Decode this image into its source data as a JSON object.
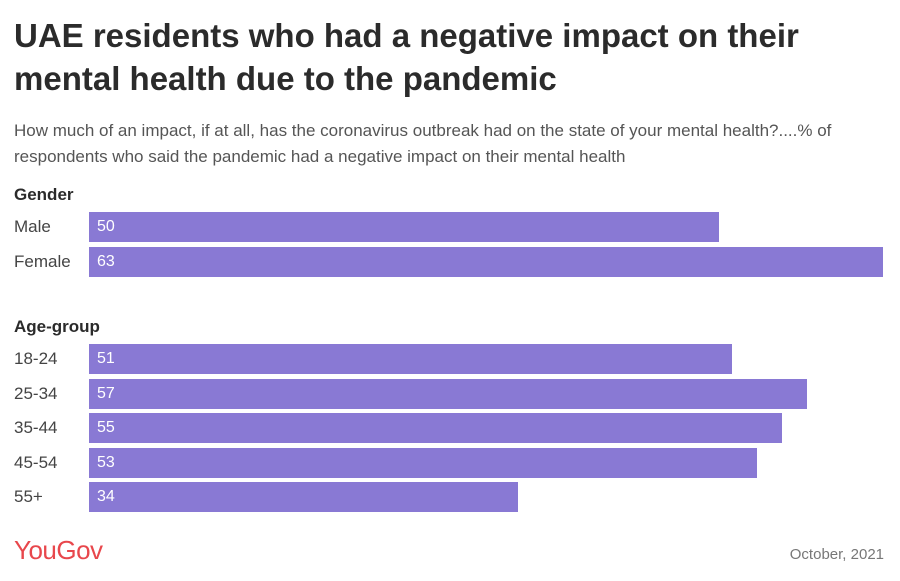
{
  "chart_data": {
    "type": "bar",
    "orientation": "horizontal",
    "title": "UAE residents who had a negative impact on their mental health due to the pandemic",
    "subtitle": "How much of an impact, if at all, has the coronavirus outbreak had on the state of your mental health?....% of respondents who said the pandemic had a negative impact on their mental health",
    "xlim": [
      0,
      63
    ],
    "groups": [
      {
        "label": "Gender",
        "categories": [
          "Male",
          "Female"
        ],
        "values": [
          50,
          63
        ]
      },
      {
        "label": "Age-group",
        "categories": [
          "18-24",
          "25-34",
          "35-44",
          "45-54",
          "55+"
        ],
        "values": [
          51,
          57,
          55,
          53,
          34
        ]
      }
    ],
    "bar_color": "#8979d4"
  },
  "footer": {
    "brand": "YouGov",
    "date": "October, 2021"
  },
  "colors": {
    "brand": "#e8474c",
    "bar": "#8979d4"
  }
}
